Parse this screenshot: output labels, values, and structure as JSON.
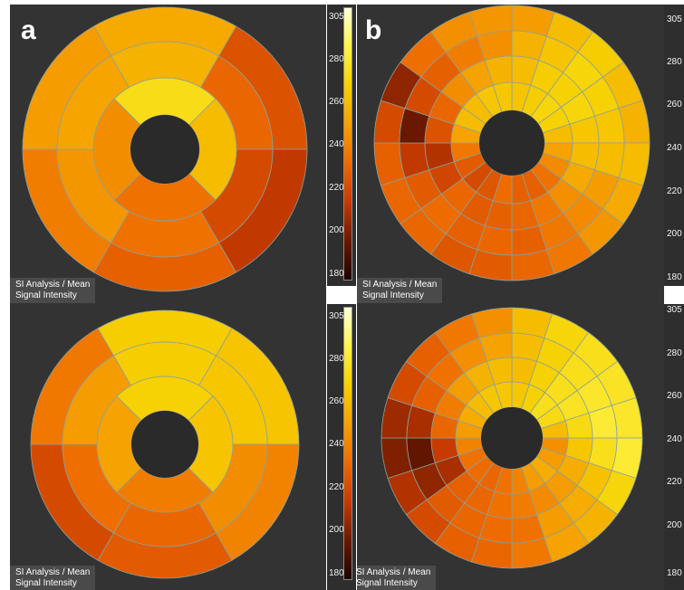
{
  "panels": [
    {
      "id": "a-top",
      "letter": "a",
      "label_line1": "SI Analysis / Mean",
      "label_line2": "Signal Intensity",
      "rings": [
        {
          "segments": [
            255,
            225,
            215,
            230,
            240,
            250
          ]
        },
        {
          "segments": [
            258,
            232,
            222,
            236,
            248,
            253
          ]
        },
        {
          "segments": [
            275,
            262,
            236,
            245
          ]
        }
      ]
    },
    {
      "id": "a-bottom",
      "letter": "",
      "label_line1": "SI Analysis / Mean",
      "label_line2": "Signal Intensity",
      "rings": [
        {
          "segments": [
            268,
            265,
            242,
            228,
            222,
            238
          ]
        },
        {
          "segments": [
            268,
            266,
            245,
            232,
            235,
            250
          ]
        },
        {
          "segments": [
            270,
            265,
            240,
            252
          ]
        }
      ]
    },
    {
      "id": "b-top",
      "letter": "b",
      "label_line1": "SI Analysis / Mean",
      "label_line2": "Signal Intensity",
      "rings": [
        {
          "segments": [
            250,
            262,
            268,
            262,
            258,
            262,
            255,
            248,
            238,
            232,
            228,
            226,
            232,
            232,
            230,
            222,
            205,
            235,
            246,
            248
          ]
        },
        {
          "segments": [
            258,
            265,
            272,
            270,
            266,
            262,
            250,
            244,
            238,
            230,
            232,
            230,
            234,
            228,
            215,
            198,
            222,
            230,
            240,
            246
          ]
        },
        {
          "segments": [
            262,
            268,
            270,
            272,
            266,
            262,
            255,
            246,
            238,
            232,
            230,
            228,
            232,
            220,
            212,
            225,
            232,
            245,
            252,
            258
          ]
        },
        {
          "segments": [
            265,
            268,
            272,
            270,
            262,
            252,
            244,
            236,
            230,
            230,
            234,
            226,
            222,
            228,
            238,
            252,
            262,
            262,
            266,
            266
          ]
        }
      ]
    },
    {
      "id": "b-bottom",
      "letter": "",
      "label_line1": "SI Analysis / Mean",
      "label_line2": "Signal Intensity",
      "rings": [
        {
          "segments": [
            262,
            272,
            276,
            278,
            280,
            282,
            272,
            258,
            252,
            238,
            232,
            230,
            222,
            212,
            202,
            208,
            222,
            230,
            238,
            246
          ]
        },
        {
          "segments": [
            262,
            270,
            276,
            280,
            282,
            276,
            264,
            256,
            250,
            236,
            234,
            232,
            228,
            205,
            196,
            210,
            230,
            236,
            246,
            252
          ]
        },
        {
          "segments": [
            262,
            270,
            276,
            278,
            274,
            266,
            256,
            250,
            244,
            240,
            236,
            232,
            230,
            210,
            216,
            232,
            240,
            250,
            258,
            262
          ]
        },
        {
          "segments": [
            266,
            270,
            276,
            274,
            262,
            246,
            250,
            256,
            250,
            242,
            236,
            232,
            234,
            236,
            242,
            250,
            256,
            262,
            266,
            266
          ]
        }
      ]
    }
  ],
  "colorbar": {
    "ticks": [
      "305",
      "280",
      "260",
      "240",
      "220",
      "200",
      "180"
    ],
    "min": 180,
    "max": 305,
    "colors": [
      "#1a0400",
      "#6a1800",
      "#c63a00",
      "#ee6a00",
      "#f6a000",
      "#f6d000",
      "#fff44a",
      "#ffffd8"
    ]
  },
  "chart_data": {
    "type": "heatmap",
    "kind": "bullseye polar map",
    "value_range": [
      180,
      305
    ],
    "panels": [
      "a-top",
      "a-bottom",
      "b-top",
      "b-bottom"
    ]
  }
}
